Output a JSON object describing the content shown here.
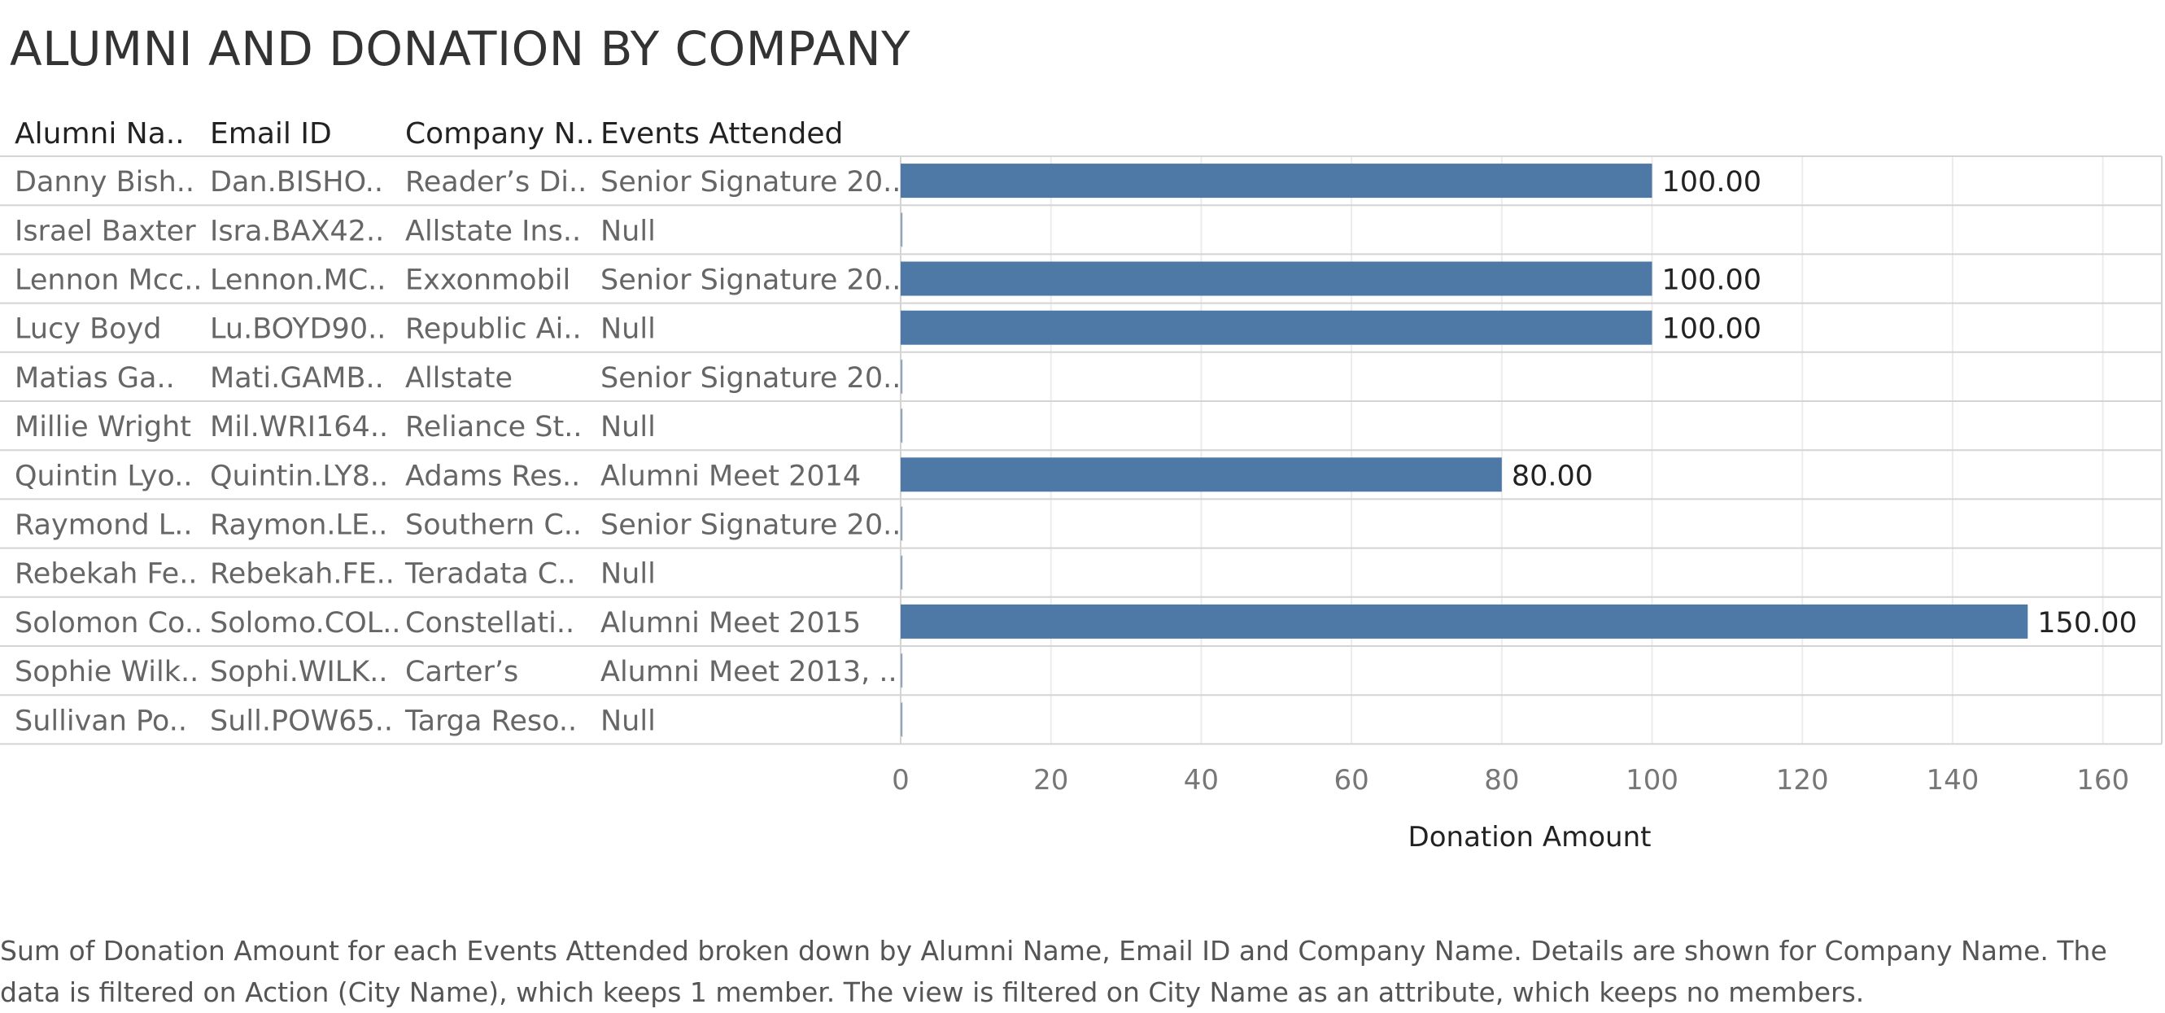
{
  "page": {
    "title": "ALUMNI AND DONATION BY COMPANY",
    "caption": "Sum of Donation Amount for each Events Attended broken down by Alumni Name, Email ID and Company Name.  Details are shown for Company Name. The data is filtered on Action (City Name), which keeps 1 member. The view is filtered on City Name as an attribute, which keeps no members."
  },
  "colors": {
    "bar": "#4e79a7",
    "grid": "#ececec",
    "row_border": "#d4d4d4",
    "header_text": "#222222",
    "cell_text": "#666666",
    "label_text": "#222222",
    "tick_text": "#777777"
  },
  "chart_data": {
    "type": "bar",
    "orientation": "horizontal",
    "columns": [
      "Alumni Na..",
      "Email ID",
      "Company N..",
      "Events Attended"
    ],
    "rows": [
      [
        "Danny Bish..",
        "Dan.BISHO..",
        "Reader’s Di..",
        "Senior Signature 20.."
      ],
      [
        "Israel Baxter",
        "Isra.BAX42..",
        "Allstate Ins..",
        "Null"
      ],
      [
        "Lennon Mcc..",
        "Lennon.MC..",
        "Exxonmobil",
        "Senior Signature 20.."
      ],
      [
        "Lucy Boyd",
        "Lu.BOYD90..",
        "Republic Ai..",
        "Null"
      ],
      [
        "Matias Ga..",
        "Mati.GAMB..",
        "Allstate",
        "Senior Signature 20.."
      ],
      [
        "Millie Wright",
        "Mil.WRI164..",
        "Reliance St..",
        "Null"
      ],
      [
        "Quintin Lyo..",
        "Quintin.LY8..",
        "Adams Res..",
        "Alumni Meet 2014"
      ],
      [
        "Raymond L..",
        "Raymon.LE..",
        "Southern C..",
        "Senior Signature 20.."
      ],
      [
        "Rebekah Fe..",
        "Rebekah.FE..",
        "Teradata C..",
        "Null"
      ],
      [
        "Solomon Co..",
        "Solomo.COL..",
        "Constellati..",
        "Alumni Meet 2015"
      ],
      [
        "Sophie Wilk..",
        "Sophi.WILK..",
        "Carter’s",
        "Alumni Meet 2013, .."
      ],
      [
        "Sullivan Po..",
        "Sull.POW65..",
        "Targa Reso..",
        "Null"
      ]
    ],
    "values": [
      100,
      0,
      100,
      100,
      0,
      0,
      80,
      0,
      0,
      150,
      0,
      0
    ],
    "value_labels": [
      "100.00",
      "",
      "100.00",
      "100.00",
      "",
      "",
      "80.00",
      "",
      "",
      "150.00",
      "",
      ""
    ],
    "xlabel": "Donation Amount",
    "xlim": [
      0,
      170
    ],
    "xticks": [
      0,
      20,
      40,
      60,
      80,
      100,
      120,
      140,
      160
    ],
    "grid": true,
    "legend": "none"
  }
}
